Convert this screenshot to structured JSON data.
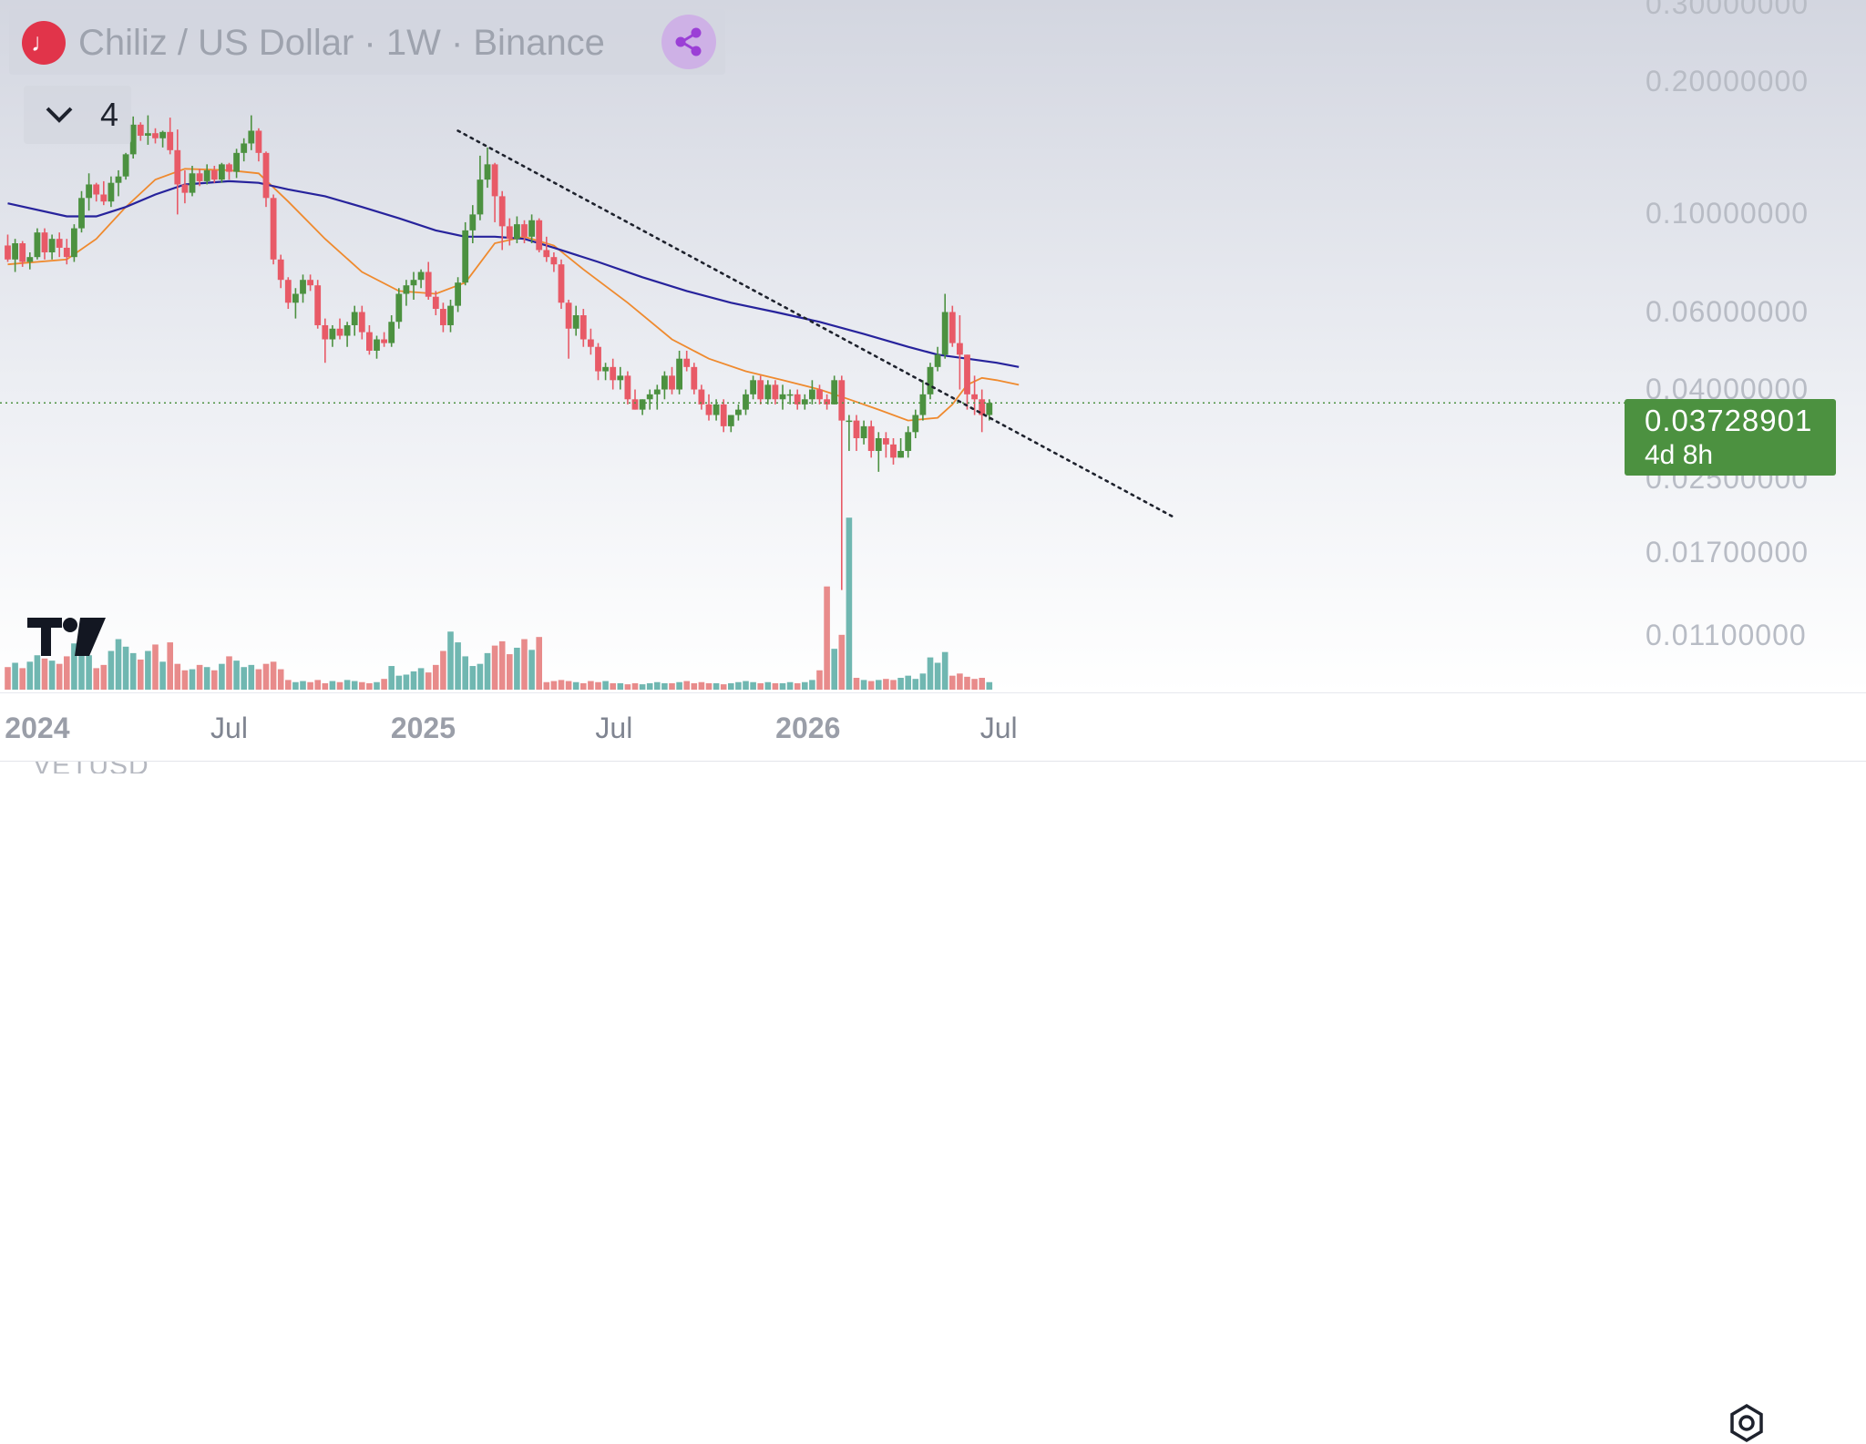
{
  "header": {
    "symbol_title": "Chiliz / US Dollar · 1W · Binance",
    "logo_icon": "chiliz-logo-icon",
    "share_icon": "share-icon"
  },
  "indicator_toggle": {
    "icon": "chevron-down-icon",
    "count": "4"
  },
  "price_scale": {
    "ticks": [
      "0.30000000",
      "0.20000000",
      "0.10000000",
      "0.06000000",
      "0.04000000",
      "0.02500000",
      "0.01700000",
      "0.01100000"
    ],
    "last_price": "0.03728901",
    "countdown": "4d 8h",
    "last_price_color": "#4c9140"
  },
  "time_scale": {
    "labels": [
      "2024",
      "Jul",
      "2025",
      "Jul",
      "2026",
      "Jul"
    ],
    "settings_icon": "settings-icon"
  },
  "bottom_strip": {
    "text": "VETUSD"
  },
  "colors": {
    "up": "#4c9140",
    "down": "#e85a67",
    "volume_up": "#70b7b1",
    "volume_down": "#e88b8b",
    "ma_fast": "#ef8a2e",
    "ma_slow": "#27239c"
  },
  "chart_data": {
    "type": "candlestick",
    "title": "Chiliz / US Dollar · 1W · Binance",
    "interval": "1W",
    "scale": "log",
    "ylim": [
      0.0095,
      0.3
    ],
    "grid": false,
    "x_range": [
      "2023-12-04",
      "2026-09-07"
    ],
    "start": "2023-12-04",
    "step_days": 7,
    "x_tick_labels": [
      "2024",
      "Jul",
      "2025",
      "Jul",
      "2026",
      "Jul"
    ],
    "candles": [
      [
        0.085,
        0.09,
        0.078,
        0.079
      ],
      [
        0.079,
        0.088,
        0.074,
        0.086
      ],
      [
        0.086,
        0.087,
        0.076,
        0.078
      ],
      [
        0.078,
        0.082,
        0.075,
        0.08
      ],
      [
        0.08,
        0.093,
        0.079,
        0.091
      ],
      [
        0.091,
        0.093,
        0.079,
        0.082
      ],
      [
        0.082,
        0.09,
        0.079,
        0.088
      ],
      [
        0.088,
        0.091,
        0.08,
        0.084
      ],
      [
        0.084,
        0.088,
        0.077,
        0.08
      ],
      [
        0.08,
        0.095,
        0.078,
        0.093
      ],
      [
        0.093,
        0.113,
        0.091,
        0.109
      ],
      [
        0.109,
        0.124,
        0.102,
        0.117
      ],
      [
        0.117,
        0.118,
        0.107,
        0.111
      ],
      [
        0.111,
        0.119,
        0.105,
        0.107
      ],
      [
        0.107,
        0.122,
        0.104,
        0.118
      ],
      [
        0.118,
        0.126,
        0.11,
        0.122
      ],
      [
        0.122,
        0.138,
        0.12,
        0.137
      ],
      [
        0.137,
        0.167,
        0.134,
        0.16
      ],
      [
        0.16,
        0.162,
        0.147,
        0.151
      ],
      [
        0.151,
        0.168,
        0.144,
        0.153
      ],
      [
        0.153,
        0.157,
        0.145,
        0.149
      ],
      [
        0.149,
        0.155,
        0.142,
        0.154
      ],
      [
        0.154,
        0.166,
        0.137,
        0.14
      ],
      [
        0.14,
        0.156,
        0.1,
        0.117
      ],
      [
        0.117,
        0.126,
        0.106,
        0.112
      ],
      [
        0.112,
        0.129,
        0.11,
        0.124
      ],
      [
        0.124,
        0.127,
        0.116,
        0.119
      ],
      [
        0.119,
        0.13,
        0.117,
        0.126
      ],
      [
        0.126,
        0.129,
        0.118,
        0.12
      ],
      [
        0.12,
        0.131,
        0.118,
        0.13
      ],
      [
        0.13,
        0.131,
        0.12,
        0.125
      ],
      [
        0.125,
        0.141,
        0.121,
        0.138
      ],
      [
        0.138,
        0.149,
        0.132,
        0.145
      ],
      [
        0.145,
        0.168,
        0.14,
        0.155
      ],
      [
        0.155,
        0.157,
        0.132,
        0.138
      ],
      [
        0.138,
        0.139,
        0.104,
        0.109
      ],
      [
        0.109,
        0.111,
        0.077,
        0.079
      ],
      [
        0.079,
        0.081,
        0.068,
        0.071
      ],
      [
        0.071,
        0.072,
        0.061,
        0.063
      ],
      [
        0.063,
        0.068,
        0.058,
        0.066
      ],
      [
        0.066,
        0.073,
        0.063,
        0.071
      ],
      [
        0.071,
        0.073,
        0.067,
        0.069
      ],
      [
        0.069,
        0.071,
        0.055,
        0.056
      ],
      [
        0.056,
        0.058,
        0.046,
        0.052
      ],
      [
        0.052,
        0.056,
        0.05,
        0.055
      ],
      [
        0.055,
        0.058,
        0.052,
        0.053
      ],
      [
        0.053,
        0.057,
        0.05,
        0.056
      ],
      [
        0.056,
        0.062,
        0.053,
        0.06
      ],
      [
        0.06,
        0.062,
        0.052,
        0.054
      ],
      [
        0.054,
        0.056,
        0.048,
        0.049
      ],
      [
        0.049,
        0.053,
        0.047,
        0.052
      ],
      [
        0.052,
        0.054,
        0.05,
        0.051
      ],
      [
        0.051,
        0.059,
        0.05,
        0.057
      ],
      [
        0.057,
        0.068,
        0.055,
        0.066
      ],
      [
        0.066,
        0.071,
        0.062,
        0.069
      ],
      [
        0.069,
        0.074,
        0.064,
        0.071
      ],
      [
        0.071,
        0.075,
        0.068,
        0.074
      ],
      [
        0.074,
        0.078,
        0.064,
        0.065
      ],
      [
        0.065,
        0.067,
        0.059,
        0.061
      ],
      [
        0.061,
        0.063,
        0.054,
        0.056
      ],
      [
        0.056,
        0.064,
        0.054,
        0.062
      ],
      [
        0.062,
        0.072,
        0.06,
        0.07
      ],
      [
        0.07,
        0.096,
        0.069,
        0.092
      ],
      [
        0.092,
        0.105,
        0.086,
        0.1
      ],
      [
        0.1,
        0.136,
        0.097,
        0.12
      ],
      [
        0.12,
        0.142,
        0.115,
        0.13
      ],
      [
        0.13,
        0.131,
        0.096,
        0.11
      ],
      [
        0.11,
        0.113,
        0.083,
        0.094
      ],
      [
        0.094,
        0.098,
        0.085,
        0.088
      ],
      [
        0.088,
        0.099,
        0.086,
        0.095
      ],
      [
        0.095,
        0.097,
        0.086,
        0.089
      ],
      [
        0.089,
        0.1,
        0.086,
        0.097
      ],
      [
        0.097,
        0.098,
        0.082,
        0.083
      ],
      [
        0.083,
        0.089,
        0.078,
        0.08
      ],
      [
        0.08,
        0.082,
        0.074,
        0.077
      ],
      [
        0.077,
        0.079,
        0.061,
        0.063
      ],
      [
        0.063,
        0.064,
        0.047,
        0.055
      ],
      [
        0.055,
        0.062,
        0.053,
        0.059
      ],
      [
        0.059,
        0.061,
        0.05,
        0.052
      ],
      [
        0.052,
        0.055,
        0.048,
        0.05
      ],
      [
        0.05,
        0.051,
        0.042,
        0.044
      ],
      [
        0.044,
        0.046,
        0.042,
        0.045
      ],
      [
        0.045,
        0.047,
        0.04,
        0.042
      ],
      [
        0.042,
        0.045,
        0.04,
        0.043
      ],
      [
        0.043,
        0.044,
        0.037,
        0.038
      ],
      [
        0.038,
        0.04,
        0.036,
        0.036
      ],
      [
        0.036,
        0.038,
        0.035,
        0.038
      ],
      [
        0.038,
        0.04,
        0.036,
        0.039
      ],
      [
        0.039,
        0.041,
        0.036,
        0.04
      ],
      [
        0.04,
        0.044,
        0.038,
        0.043
      ],
      [
        0.043,
        0.045,
        0.039,
        0.04
      ],
      [
        0.04,
        0.049,
        0.039,
        0.047
      ],
      [
        0.047,
        0.049,
        0.044,
        0.045
      ],
      [
        0.045,
        0.046,
        0.039,
        0.04
      ],
      [
        0.04,
        0.041,
        0.036,
        0.037
      ],
      [
        0.037,
        0.039,
        0.034,
        0.035
      ],
      [
        0.035,
        0.038,
        0.034,
        0.037
      ],
      [
        0.037,
        0.038,
        0.032,
        0.033
      ],
      [
        0.033,
        0.035,
        0.032,
        0.035
      ],
      [
        0.035,
        0.037,
        0.034,
        0.036
      ],
      [
        0.036,
        0.04,
        0.035,
        0.039
      ],
      [
        0.039,
        0.043,
        0.038,
        0.042
      ],
      [
        0.042,
        0.043,
        0.037,
        0.038
      ],
      [
        0.038,
        0.042,
        0.037,
        0.041
      ],
      [
        0.041,
        0.042,
        0.037,
        0.038
      ],
      [
        0.038,
        0.041,
        0.036,
        0.039
      ],
      [
        0.039,
        0.04,
        0.037,
        0.039
      ],
      [
        0.039,
        0.04,
        0.036,
        0.037
      ],
      [
        0.037,
        0.039,
        0.036,
        0.038
      ],
      [
        0.038,
        0.042,
        0.037,
        0.04
      ],
      [
        0.04,
        0.041,
        0.037,
        0.038
      ],
      [
        0.038,
        0.039,
        0.036,
        0.037
      ],
      [
        0.037,
        0.043,
        0.037,
        0.042
      ],
      [
        0.042,
        0.043,
        0.014,
        0.034
      ],
      [
        0.034,
        0.035,
        0.029,
        0.034
      ],
      [
        0.034,
        0.035,
        0.029,
        0.031
      ],
      [
        0.031,
        0.034,
        0.03,
        0.033
      ],
      [
        0.033,
        0.034,
        0.028,
        0.029
      ],
      [
        0.029,
        0.032,
        0.026,
        0.031
      ],
      [
        0.031,
        0.032,
        0.028,
        0.03
      ],
      [
        0.03,
        0.031,
        0.027,
        0.028
      ],
      [
        0.028,
        0.031,
        0.028,
        0.029
      ],
      [
        0.029,
        0.033,
        0.028,
        0.032
      ],
      [
        0.032,
        0.036,
        0.031,
        0.035
      ],
      [
        0.035,
        0.042,
        0.034,
        0.039
      ],
      [
        0.039,
        0.046,
        0.038,
        0.045
      ],
      [
        0.045,
        0.05,
        0.044,
        0.048
      ],
      [
        0.048,
        0.066,
        0.047,
        0.06
      ],
      [
        0.06,
        0.062,
        0.05,
        0.051
      ],
      [
        0.051,
        0.059,
        0.04,
        0.048
      ],
      [
        0.048,
        0.048,
        0.036,
        0.039
      ],
      [
        0.039,
        0.043,
        0.035,
        0.038
      ],
      [
        0.038,
        0.04,
        0.032,
        0.035
      ],
      [
        0.035,
        0.038,
        0.034,
        0.0373
      ]
    ],
    "volume": [
      2.1,
      2.5,
      2.0,
      2.6,
      3.2,
      2.9,
      2.7,
      2.4,
      3.1,
      4.3,
      5.1,
      3.2,
      2.0,
      2.3,
      3.6,
      4.7,
      4.0,
      3.4,
      2.8,
      3.6,
      4.2,
      2.6,
      4.4,
      2.4,
      1.8,
      1.9,
      2.3,
      2.1,
      1.8,
      2.4,
      3.1,
      2.7,
      2.1,
      2.3,
      1.9,
      2.4,
      2.6,
      1.9,
      0.9,
      0.7,
      0.8,
      0.7,
      0.9,
      0.6,
      0.8,
      0.7,
      0.9,
      0.8,
      0.7,
      0.6,
      0.7,
      1.0,
      2.2,
      1.3,
      1.4,
      1.7,
      2.0,
      1.6,
      2.3,
      3.6,
      5.4,
      4.4,
      3.1,
      2.2,
      2.4,
      3.4,
      4.1,
      4.5,
      3.3,
      3.9,
      4.7,
      3.7,
      4.9,
      0.7,
      0.8,
      0.9,
      0.8,
      0.7,
      0.6,
      0.8,
      0.7,
      0.8,
      0.6,
      0.6,
      0.5,
      0.6,
      0.5,
      0.6,
      0.7,
      0.6,
      0.6,
      0.7,
      0.8,
      0.6,
      0.7,
      0.6,
      0.6,
      0.5,
      0.6,
      0.7,
      0.8,
      0.7,
      0.6,
      0.7,
      0.6,
      0.6,
      0.7,
      0.6,
      0.7,
      0.9,
      1.8,
      9.6,
      3.8,
      5.1,
      16.0,
      1.1,
      0.9,
      0.8,
      0.9,
      1.0,
      0.9,
      1.1,
      1.3,
      1.0,
      1.5,
      3.0,
      2.5,
      3.5,
      1.3,
      1.5,
      1.2,
      1.0,
      1.1,
      0.7
    ],
    "moving_averages": [
      {
        "name": "MA fast",
        "color": "#ef8a2e",
        "points": [
          [
            0,
            0.077
          ],
          [
            8,
            0.079
          ],
          [
            12,
            0.088
          ],
          [
            16,
            0.104
          ],
          [
            20,
            0.12
          ],
          [
            24,
            0.127
          ],
          [
            30,
            0.126
          ],
          [
            34,
            0.124
          ],
          [
            38,
            0.107
          ],
          [
            43,
            0.088
          ],
          [
            48,
            0.074
          ],
          [
            53,
            0.067
          ],
          [
            58,
            0.066
          ],
          [
            62,
            0.07
          ],
          [
            66,
            0.086
          ],
          [
            70,
            0.089
          ],
          [
            74,
            0.085
          ],
          [
            78,
            0.075
          ],
          [
            84,
            0.063
          ],
          [
            90,
            0.052
          ],
          [
            95,
            0.047
          ],
          [
            100,
            0.044
          ],
          [
            105,
            0.042
          ],
          [
            110,
            0.04
          ],
          [
            114,
            0.038
          ],
          [
            118,
            0.036
          ],
          [
            122,
            0.034
          ],
          [
            126,
            0.0345
          ],
          [
            128,
            0.037
          ],
          [
            130,
            0.041
          ],
          [
            132,
            0.0425
          ],
          [
            134,
            0.042
          ],
          [
            137,
            0.041
          ]
        ]
      },
      {
        "name": "MA slow",
        "color": "#27239c",
        "points": [
          [
            0,
            0.106
          ],
          [
            8,
            0.099
          ],
          [
            12,
            0.099
          ],
          [
            16,
            0.104
          ],
          [
            20,
            0.111
          ],
          [
            24,
            0.117
          ],
          [
            30,
            0.119
          ],
          [
            34,
            0.118
          ],
          [
            38,
            0.114
          ],
          [
            43,
            0.11
          ],
          [
            48,
            0.104
          ],
          [
            53,
            0.098
          ],
          [
            58,
            0.092
          ],
          [
            62,
            0.089
          ],
          [
            66,
            0.089
          ],
          [
            70,
            0.088
          ],
          [
            74,
            0.084
          ],
          [
            80,
            0.078
          ],
          [
            86,
            0.072
          ],
          [
            92,
            0.067
          ],
          [
            98,
            0.063
          ],
          [
            104,
            0.06
          ],
          [
            110,
            0.057
          ],
          [
            116,
            0.0535
          ],
          [
            122,
            0.05
          ],
          [
            126,
            0.048
          ],
          [
            130,
            0.047
          ],
          [
            134,
            0.046
          ],
          [
            137,
            0.045
          ]
        ]
      }
    ],
    "trendline": {
      "style": "dotted",
      "color": "#1e222d",
      "from": [
        61,
        0.155
      ],
      "to": [
        158,
        0.0205
      ]
    },
    "last_price_line": {
      "value": 0.03728901,
      "color": "#4c9140",
      "style": "dotted"
    }
  }
}
